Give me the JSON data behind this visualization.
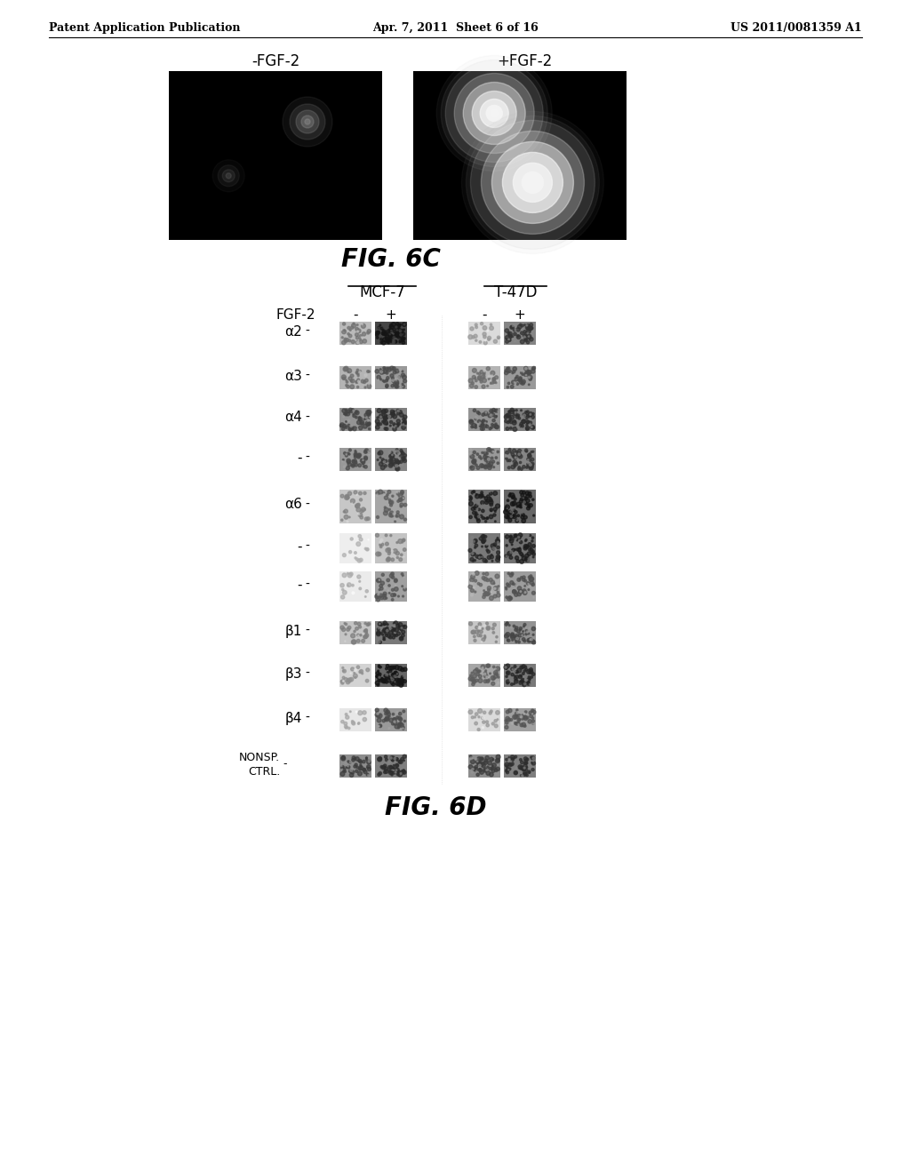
{
  "header_left": "Patent Application Publication",
  "header_center": "Apr. 7, 2011  Sheet 6 of 16",
  "header_right": "US 2011/0081359 A1",
  "fig6c_label": "FIG. 6C",
  "fig6d_label": "FIG. 6D",
  "label_minus_fgf2": "-FGF-2",
  "label_plus_fgf2": "+FGF-2",
  "label_mcf7": "MCF-7",
  "label_t47d": "T-47D",
  "label_fgf2": "FGF-2",
  "row_labels": [
    "α2",
    "α3",
    "α4",
    "-",
    "α6",
    "-",
    "-",
    "β1",
    "β3",
    "β4",
    "NONSP.\nCTRL."
  ],
  "col_labels": [
    "-",
    "+",
    "-",
    "+"
  ],
  "background_color": "#ffffff",
  "text_color": "#000000"
}
